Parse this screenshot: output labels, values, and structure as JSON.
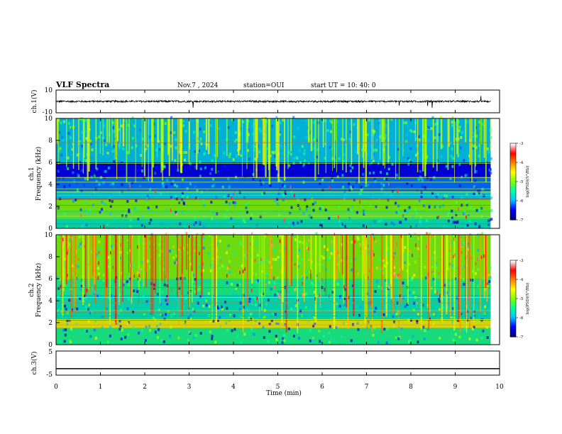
{
  "header": {
    "title": "VLF Spectra",
    "date": "Nov.7 , 2024",
    "station": "station=OUI",
    "start": "start UT = 10: 40: 0"
  },
  "colors": {
    "spectrogram_background": "#0a0a6e",
    "waveform": "#000000",
    "colorbar_stops": [
      "#000080",
      "#0000ff",
      "#00c0ff",
      "#00ffa0",
      "#80ff00",
      "#ffff00",
      "#ff8000",
      "#ff0000",
      "#ffffff"
    ]
  },
  "chart_data": [
    {
      "type": "line",
      "panel": "waveform-1",
      "ylabel": "ch.1(V)",
      "ylim": [
        -10,
        10
      ],
      "yticks": [
        "10",
        "-10"
      ],
      "x": [
        0,
        10
      ],
      "y_baseline": 0,
      "xlim": [
        0,
        10
      ]
    },
    {
      "type": "heatmap",
      "panel": "spectrogram-1",
      "ylabel_line1": "ch.1",
      "ylabel_line2": "Frequency (kHz)",
      "ylim": [
        0,
        10
      ],
      "yticks": [
        "0",
        "2",
        "4",
        "6",
        "8",
        "10"
      ],
      "xlim": [
        0,
        9.8
      ],
      "colorbar": {
        "label": "log(PSD)(V²/Hz)",
        "range": [
          -7,
          -3
        ],
        "ticks": [
          "-3",
          "-4",
          "-5",
          "-6",
          "-7"
        ]
      }
    },
    {
      "type": "heatmap",
      "panel": "spectrogram-2",
      "ylabel_line1": "ch.2",
      "ylabel_line2": "Frequency (kHz)",
      "ylim": [
        0,
        10
      ],
      "yticks": [
        "0",
        "2",
        "4",
        "6",
        "8",
        "10"
      ],
      "xlim": [
        0,
        9.8
      ],
      "colorbar": {
        "label": "log(PSD)(V²/Hz)",
        "range": [
          -7,
          -3
        ],
        "ticks": [
          "-3",
          "-4",
          "-5",
          "-6",
          "-7"
        ]
      }
    },
    {
      "type": "line",
      "panel": "waveform-3",
      "ylabel": "ch.3(V)",
      "ylim": [
        -5,
        5
      ],
      "yticks": [
        "5",
        "-5"
      ],
      "x": [
        0,
        10
      ],
      "y": [
        -2.3,
        -2.3
      ],
      "xlim": [
        0,
        10
      ]
    }
  ],
  "xaxis": {
    "label": "Time (min)",
    "ticks": [
      "0",
      "1",
      "2",
      "3",
      "4",
      "5",
      "6",
      "7",
      "8",
      "9",
      "10"
    ]
  }
}
